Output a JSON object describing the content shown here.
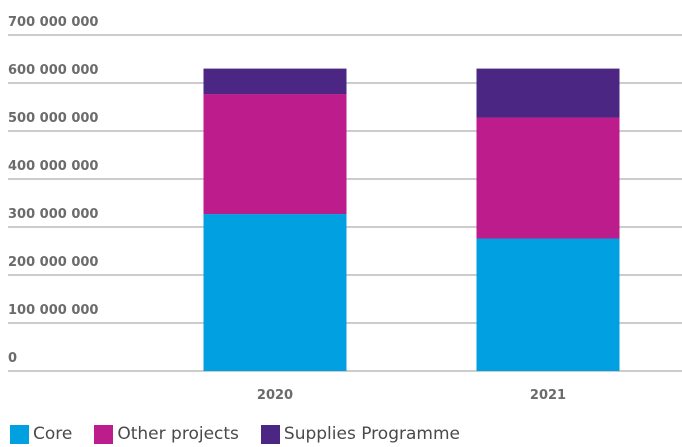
{
  "chart_data": {
    "type": "bar",
    "stacked": true,
    "categories": [
      "2020",
      "2021"
    ],
    "series": [
      {
        "name": "Core",
        "color": "#00a0e1",
        "values": [
          327000000,
          276000000
        ]
      },
      {
        "name": "Other projects",
        "color": "#bd1c8d",
        "values": [
          250000000,
          252000000
        ]
      },
      {
        "name": "Supplies Programme",
        "color": "#4b2683",
        "values": [
          53000000,
          102000000
        ]
      }
    ],
    "ylim": [
      0,
      700000000
    ],
    "yticks": [
      0,
      100000000,
      200000000,
      300000000,
      400000000,
      500000000,
      600000000,
      700000000
    ],
    "ytick_labels": [
      "0",
      "100 000 000",
      "200 000 000",
      "300 000 000",
      "400 000 000",
      "500 000 000",
      "600 000 000",
      "700 000 000"
    ],
    "grid": true,
    "legend": "bottom",
    "title": "",
    "xlabel": "",
    "ylabel": ""
  }
}
